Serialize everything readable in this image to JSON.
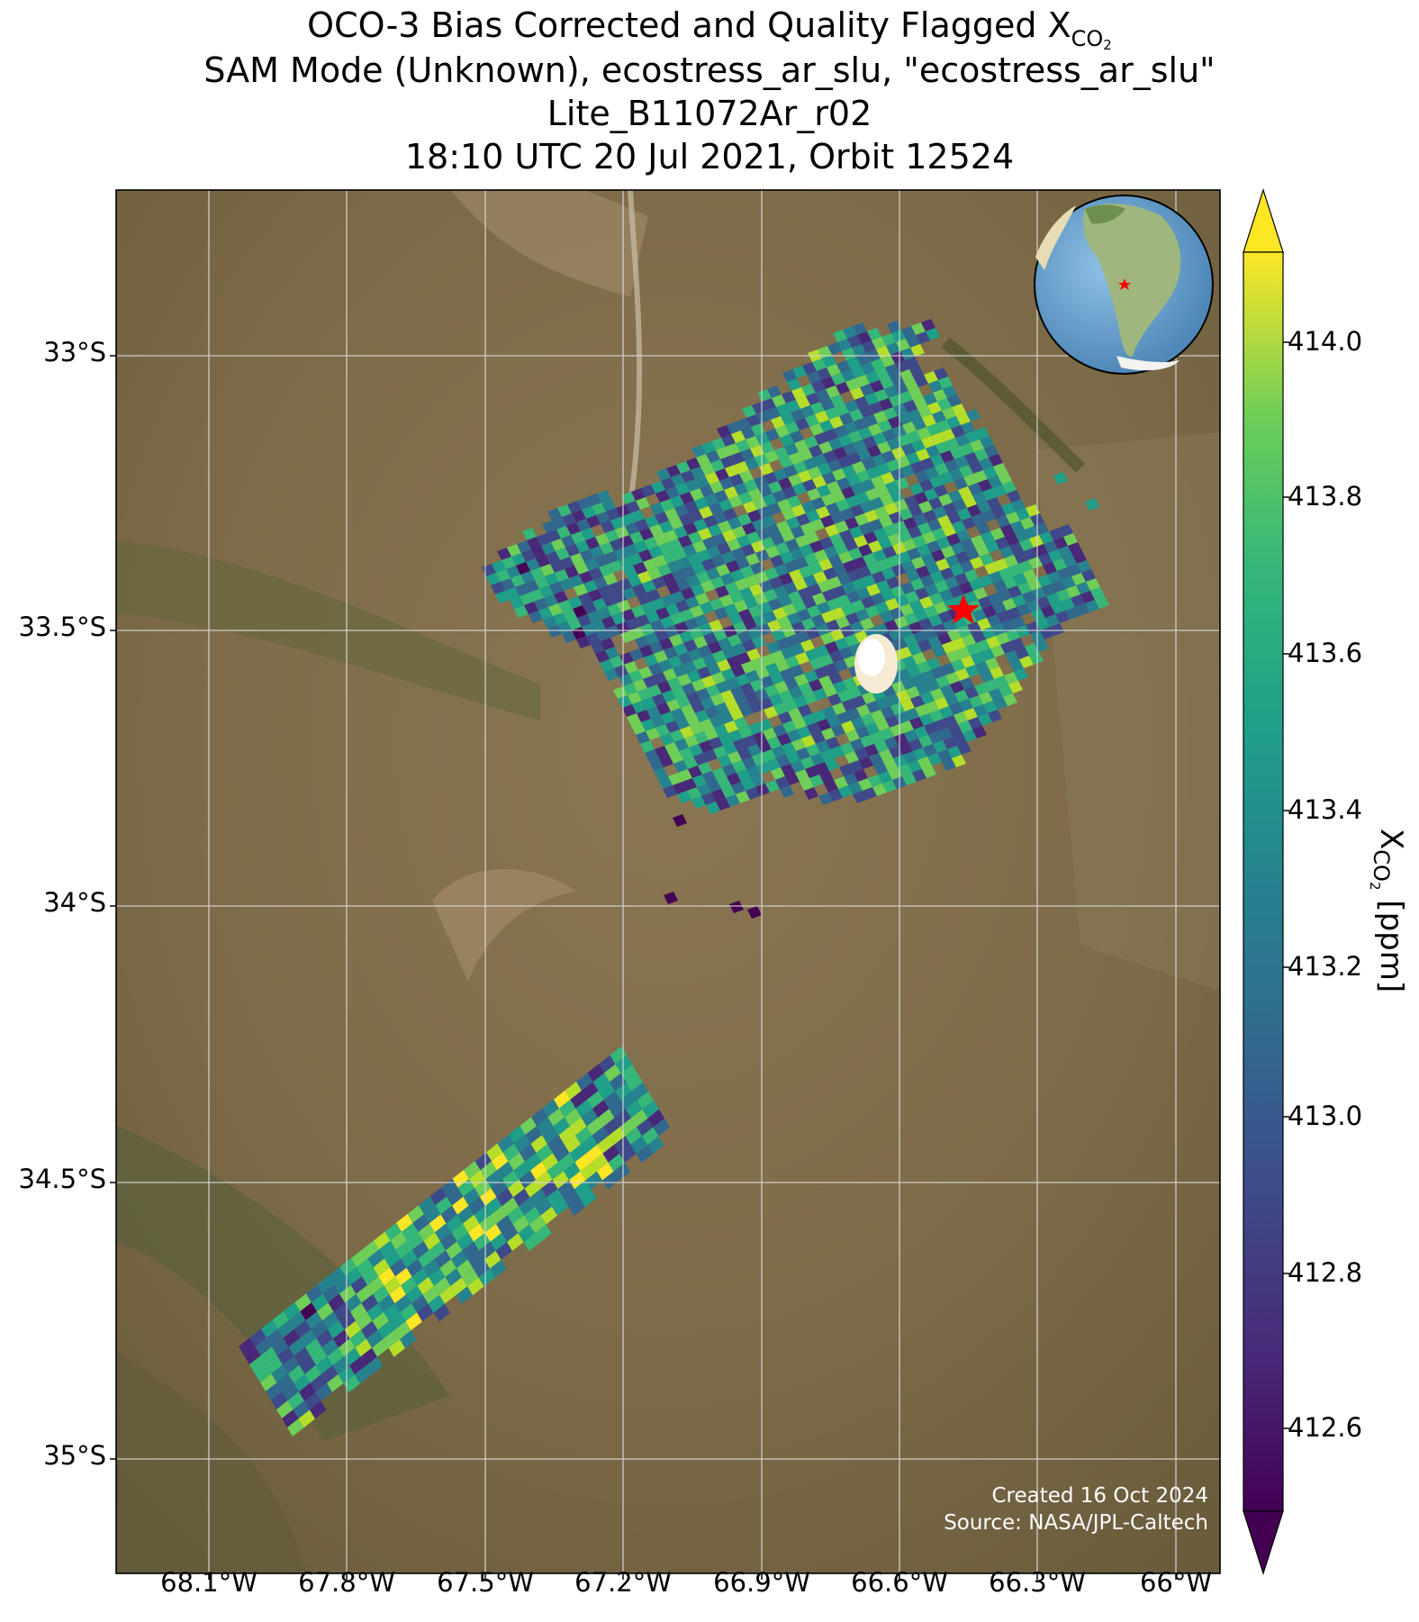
{
  "title": {
    "line1_main": "OCO-3 Bias Corrected and Quality Flagged X",
    "line1_sub": "CO",
    "line1_sub2": "2",
    "line2": "SAM Mode (Unknown), ecostress_ar_slu, \"ecostress_ar_slu\"",
    "line3": "Lite_B11072Ar_r02",
    "line4": "18:10 UTC 20 Jul 2021, Orbit 12524"
  },
  "map": {
    "lat_labels": [
      "33°S",
      "33.5°S",
      "34°S",
      "34.5°S",
      "35°S"
    ],
    "lon_labels": [
      "68.1°W",
      "67.8°W",
      "67.5°W",
      "67.2°W",
      "66.9°W",
      "66.6°W",
      "66.3°W",
      "66°W"
    ],
    "target_marker": "red-star",
    "inset": "globe-south-america"
  },
  "colorbar": {
    "tick_labels": [
      "414.0",
      "413.8",
      "413.6",
      "413.4",
      "413.2",
      "413.0",
      "412.8",
      "412.6"
    ],
    "label_main": "X",
    "label_sub": "CO",
    "label_sub2": "2",
    "label_unit": " [ppm]",
    "colormap": "viridis",
    "vmin": 412.5,
    "vmax": 414.1
  },
  "credit": {
    "created": "Created 16 Oct 2024",
    "source": "Source: NASA/JPL-Caltech"
  }
}
